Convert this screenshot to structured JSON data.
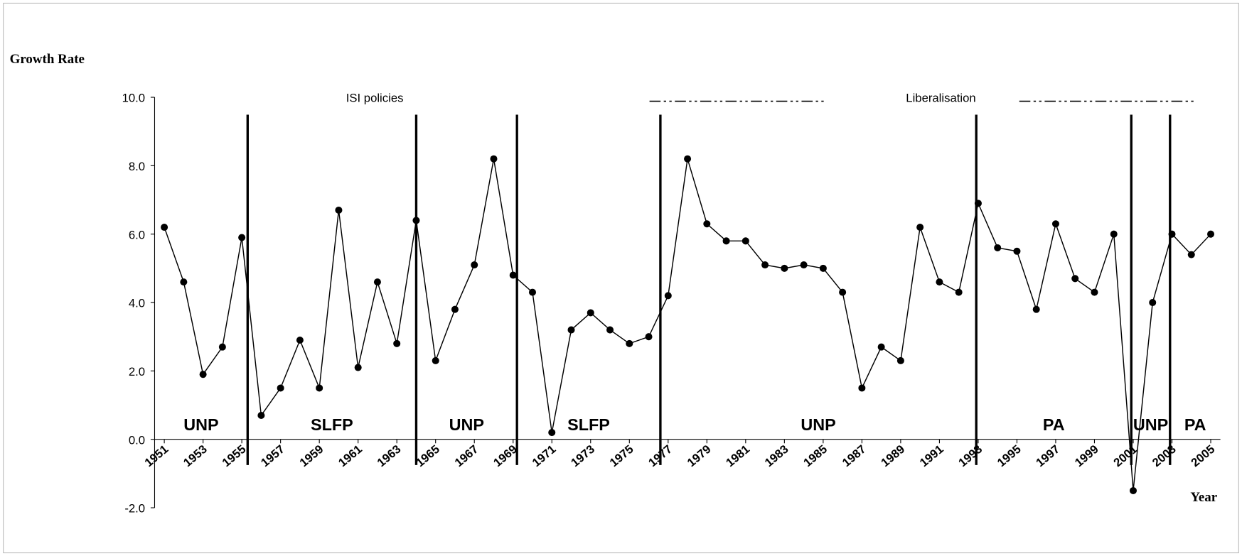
{
  "chart_data": {
    "type": "line",
    "y_label": "Growth Rate",
    "x_label": "Year",
    "x": [
      1951,
      1952,
      1953,
      1954,
      1955,
      1956,
      1957,
      1958,
      1959,
      1960,
      1961,
      1962,
      1963,
      1964,
      1965,
      1966,
      1967,
      1968,
      1969,
      1970,
      1971,
      1972,
      1973,
      1974,
      1975,
      1976,
      1977,
      1978,
      1979,
      1980,
      1981,
      1982,
      1983,
      1984,
      1985,
      1986,
      1987,
      1988,
      1989,
      1990,
      1991,
      1992,
      1993,
      1994,
      1995,
      1996,
      1997,
      1998,
      1999,
      2000,
      2001,
      2002,
      2003,
      2004,
      2005
    ],
    "series": [
      {
        "color": "#000000",
        "values": [
          6.2,
          4.6,
          1.9,
          2.7,
          5.9,
          0.7,
          1.5,
          2.9,
          1.5,
          6.7,
          2.1,
          4.6,
          2.8,
          6.4,
          2.3,
          3.8,
          5.1,
          8.2,
          4.8,
          4.3,
          0.2,
          3.2,
          3.7,
          3.2,
          2.8,
          3.0,
          4.2,
          8.2,
          6.3,
          5.8,
          5.8,
          5.1,
          5.0,
          5.1,
          5.0,
          4.3,
          1.5,
          2.7,
          2.3,
          6.2,
          4.6,
          4.3,
          6.9,
          5.6,
          5.5,
          3.8,
          6.3,
          4.7,
          4.3,
          6.0,
          -1.5,
          4.0,
          6.0,
          5.4,
          6.0
        ]
      }
    ],
    "xlim": [
      1950.5,
      2005.5
    ],
    "xticks": [
      1951,
      1953,
      1955,
      1957,
      1959,
      1961,
      1963,
      1965,
      1967,
      1969,
      1971,
      1973,
      1975,
      1977,
      1979,
      1981,
      1983,
      1985,
      1987,
      1989,
      1991,
      1993,
      1995,
      1997,
      1999,
      2001,
      2003,
      2005
    ],
    "ylim": [
      -2,
      10
    ],
    "yticks": [
      {
        "value": -2,
        "label": "-2.0"
      },
      {
        "value": 0,
        "label": "0.0"
      },
      {
        "value": 2,
        "label": "2.0"
      },
      {
        "value": 4,
        "label": "4.0"
      },
      {
        "value": 6,
        "label": "6.0"
      },
      {
        "value": 8,
        "label": "8.0"
      },
      {
        "value": 10,
        "label": "10.0"
      }
    ],
    "dividers": [
      1955.3,
      1964.0,
      1969.2,
      1976.6,
      1992.9,
      2000.9,
      2002.9
    ],
    "periods": [
      "UNP",
      "SLFP",
      "UNP",
      "SLFP",
      "UNP",
      "PA",
      "UNP",
      "PA"
    ],
    "policy_labels": [
      "ISI policies",
      "Liberalisation"
    ]
  }
}
